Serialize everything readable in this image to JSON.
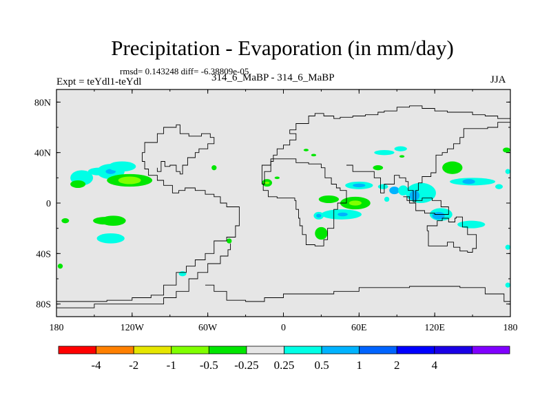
{
  "header": {
    "title": "Precipitation - Evaporation (in mm/day)",
    "stats": "rmsd= 0.143248 diff= -6.38809e-05",
    "left_label": "Expt = teYdl1-teYdl",
    "center_label": "314_6_MaBP - 314_6_MaBP",
    "right_label": "JJA"
  },
  "chart_data": {
    "type": "heatmap",
    "title": "Precipitation - Evaporation (in mm/day)",
    "subtitle": "rmsd= 0.143248 diff= -6.38809e-05",
    "left_string": "Expt = teYdl1-teYdl",
    "center_string": "314_6_MaBP - 314_6_MaBP",
    "right_string": "JJA",
    "x_range": [
      -180,
      180
    ],
    "y_range": [
      -90,
      90
    ],
    "x_ticks": [
      {
        "value": -180,
        "label": "180"
      },
      {
        "value": -120,
        "label": "120W"
      },
      {
        "value": -60,
        "label": "60W"
      },
      {
        "value": 0,
        "label": "0"
      },
      {
        "value": 60,
        "label": "60E"
      },
      {
        "value": 120,
        "label": "120E"
      },
      {
        "value": 180,
        "label": "180"
      }
    ],
    "y_ticks": [
      {
        "value": 80,
        "label": "80N"
      },
      {
        "value": 40,
        "label": "40N"
      },
      {
        "value": 0,
        "label": "0"
      },
      {
        "value": -40,
        "label": "40S"
      },
      {
        "value": -80,
        "label": "80S"
      }
    ],
    "background_color": "#e6e6e6",
    "colorbar": {
      "colors": [
        "#ff0000",
        "#ff8000",
        "#e6e600",
        "#80ff00",
        "#00e600",
        "#e6e6e6",
        "#00ffe6",
        "#00b3ff",
        "#0064ff",
        "#0000ff",
        "#1a00e6",
        "#8000ff"
      ],
      "labels": [
        "-4",
        "-2",
        "-1",
        "-0.5",
        "-0.25",
        "0.25",
        "0.5",
        "1",
        "2",
        "4"
      ]
    },
    "anomalies": [
      {
        "lon": -160,
        "lat": 20,
        "rx": 9,
        "ry": 6,
        "fill": "#00ffe6"
      },
      {
        "lon": -163,
        "lat": 15,
        "rx": 6,
        "ry": 3,
        "fill": "#00e600"
      },
      {
        "lon": -147,
        "lat": 25,
        "rx": 8,
        "ry": 3,
        "fill": "#00ffe6"
      },
      {
        "lon": -137,
        "lat": 25,
        "rx": 11,
        "ry": 6,
        "fill": "#00ffe6"
      },
      {
        "lon": -137,
        "lat": 25,
        "rx": 4,
        "ry": 2,
        "fill": "#00b3ff"
      },
      {
        "lon": -122,
        "lat": 18,
        "rx": 18,
        "ry": 5,
        "fill": "#00e600"
      },
      {
        "lon": -122,
        "lat": 18,
        "rx": 9,
        "ry": 3,
        "fill": "#80ff00"
      },
      {
        "lon": -128,
        "lat": 29,
        "rx": 11,
        "ry": 4,
        "fill": "#00ffe6"
      },
      {
        "lon": -142,
        "lat": -14,
        "rx": 9,
        "ry": 3,
        "fill": "#00e600"
      },
      {
        "lon": -135,
        "lat": -14,
        "rx": 10,
        "ry": 4,
        "fill": "#00e600"
      },
      {
        "lon": -137,
        "lat": -28,
        "rx": 11,
        "ry": 4,
        "fill": "#00ffe6"
      },
      {
        "lon": -173,
        "lat": -14,
        "rx": 3,
        "ry": 2,
        "fill": "#00e600"
      },
      {
        "lon": -177,
        "lat": -50,
        "rx": 2,
        "ry": 2,
        "fill": "#00e600"
      },
      {
        "lon": -80,
        "lat": -56,
        "rx": 3,
        "ry": 2,
        "fill": "#00ffe6"
      },
      {
        "lon": -43,
        "lat": -30,
        "rx": 2,
        "ry": 2,
        "fill": "#00e600"
      },
      {
        "lon": -55,
        "lat": 28,
        "rx": 2,
        "ry": 2,
        "fill": "#00e600"
      },
      {
        "lon": -13,
        "lat": 16,
        "rx": 4,
        "ry": 3,
        "fill": "#00e600"
      },
      {
        "lon": -13,
        "lat": 16,
        "rx": 2,
        "ry": 1,
        "fill": "#80ff00"
      },
      {
        "lon": -5,
        "lat": 20,
        "rx": 2,
        "ry": 1,
        "fill": "#00e600"
      },
      {
        "lon": 18,
        "lat": 42,
        "rx": 2,
        "ry": 1,
        "fill": "#00e600"
      },
      {
        "lon": 24,
        "lat": 38,
        "rx": 2,
        "ry": 1,
        "fill": "#00e600"
      },
      {
        "lon": 36,
        "lat": 3,
        "rx": 8,
        "ry": 3,
        "fill": "#00e600"
      },
      {
        "lon": 57,
        "lat": 0,
        "rx": 12,
        "ry": 5,
        "fill": "#00e600"
      },
      {
        "lon": 57,
        "lat": 0,
        "rx": 5,
        "ry": 2,
        "fill": "#80ff00"
      },
      {
        "lon": 46,
        "lat": -9,
        "rx": 16,
        "ry": 4,
        "fill": "#00ffe6"
      },
      {
        "lon": 47,
        "lat": -9,
        "rx": 4,
        "ry": 1.5,
        "fill": "#00b3ff"
      },
      {
        "lon": 28,
        "lat": -10,
        "rx": 4,
        "ry": 3,
        "fill": "#00ffe6"
      },
      {
        "lon": 28,
        "lat": -10,
        "rx": 2,
        "ry": 1.5,
        "fill": "#00b3ff"
      },
      {
        "lon": 30,
        "lat": -24,
        "rx": 5,
        "ry": 5,
        "fill": "#00e600"
      },
      {
        "lon": 60,
        "lat": 14,
        "rx": 11,
        "ry": 3,
        "fill": "#00ffe6"
      },
      {
        "lon": 60,
        "lat": 14,
        "rx": 5,
        "ry": 1.5,
        "fill": "#00b3ff"
      },
      {
        "lon": 79,
        "lat": 13,
        "rx": 4,
        "ry": 2,
        "fill": "#00ffe6"
      },
      {
        "lon": 82,
        "lat": 3,
        "rx": 2,
        "ry": 2,
        "fill": "#00ffe6"
      },
      {
        "lon": 88,
        "lat": 10,
        "rx": 4,
        "ry": 3,
        "fill": "#00b3ff"
      },
      {
        "lon": 109,
        "lat": 8,
        "rx": 12,
        "ry": 8,
        "fill": "#00ffe6"
      },
      {
        "lon": 104,
        "lat": 6,
        "rx": 4,
        "ry": 4,
        "fill": "#00b3ff"
      },
      {
        "lon": 95,
        "lat": 10,
        "rx": 4,
        "ry": 4,
        "fill": "#00ffe6"
      },
      {
        "lon": 80,
        "lat": 40,
        "rx": 8,
        "ry": 2,
        "fill": "#00ffe6"
      },
      {
        "lon": 93,
        "lat": 43,
        "rx": 5,
        "ry": 2,
        "fill": "#00ffe6"
      },
      {
        "lon": 75,
        "lat": 28,
        "rx": 4,
        "ry": 2,
        "fill": "#00e600"
      },
      {
        "lon": 94,
        "lat": 37,
        "rx": 2,
        "ry": 1,
        "fill": "#00e600"
      },
      {
        "lon": 125,
        "lat": -9,
        "rx": 9,
        "ry": 5,
        "fill": "#00ffe6"
      },
      {
        "lon": 123,
        "lat": -10,
        "rx": 5,
        "ry": 3,
        "fill": "#00b3ff"
      },
      {
        "lon": 134,
        "lat": 28,
        "rx": 8,
        "ry": 5,
        "fill": "#00e600"
      },
      {
        "lon": 150,
        "lat": 17,
        "rx": 18,
        "ry": 3,
        "fill": "#00ffe6"
      },
      {
        "lon": 147,
        "lat": 17,
        "rx": 5,
        "ry": 2,
        "fill": "#00b3ff"
      },
      {
        "lon": 171,
        "lat": 13,
        "rx": 3,
        "ry": 2,
        "fill": "#00ffe6"
      },
      {
        "lon": 149,
        "lat": -17,
        "rx": 11,
        "ry": 3,
        "fill": "#00ffe6"
      },
      {
        "lon": 177,
        "lat": 42,
        "rx": 3,
        "ry": 2,
        "fill": "#00e600"
      },
      {
        "lon": 178,
        "lat": 25,
        "rx": 2,
        "ry": 2,
        "fill": "#00ffe6"
      },
      {
        "lon": 178,
        "lat": -35,
        "rx": 2,
        "ry": 2,
        "fill": "#00ffe6"
      },
      {
        "lon": 178,
        "lat": -65,
        "rx": 2,
        "ry": 2,
        "fill": "#00ffe6"
      }
    ],
    "coastlines": [
      {
        "name": "americas-outline",
        "points": [
          [
            -180,
            -78
          ],
          [
            -140,
            -77
          ],
          [
            -120,
            -75
          ],
          [
            -105,
            -73
          ],
          [
            -95,
            -65
          ],
          [
            -85,
            -55
          ],
          [
            -77,
            -50
          ],
          [
            -70,
            -45
          ],
          [
            -62,
            -40
          ],
          [
            -55,
            -30
          ],
          [
            -45,
            -27
          ],
          [
            -38,
            -18
          ],
          [
            -35,
            -8
          ],
          [
            -35,
            -3
          ],
          [
            -45,
            0
          ],
          [
            -50,
            5
          ],
          [
            -55,
            7
          ],
          [
            -62,
            10
          ],
          [
            -70,
            12
          ],
          [
            -78,
            10
          ],
          [
            -83,
            8
          ],
          [
            -88,
            14
          ],
          [
            -95,
            18
          ],
          [
            -100,
            22
          ],
          [
            -107,
            27
          ],
          [
            -110,
            33
          ],
          [
            -112,
            40
          ],
          [
            -110,
            48
          ],
          [
            -100,
            55
          ],
          [
            -95,
            60
          ],
          [
            -85,
            62
          ],
          [
            -82,
            55
          ],
          [
            -75,
            53
          ],
          [
            -65,
            55
          ],
          [
            -58,
            52
          ],
          [
            -55,
            47
          ],
          [
            -60,
            43
          ],
          [
            -67,
            40
          ],
          [
            -70,
            36
          ],
          [
            -76,
            30
          ],
          [
            -80,
            23
          ],
          [
            -82,
            25
          ],
          [
            -85,
            30
          ],
          [
            -90,
            29
          ],
          [
            -94,
            33
          ],
          [
            -97,
            27
          ],
          [
            -97,
            25
          ],
          [
            -100,
            28
          ]
        ]
      },
      {
        "name": "south-america-inner",
        "points": [
          [
            -180,
            -83
          ],
          [
            -150,
            -80
          ],
          [
            -120,
            -80
          ],
          [
            -95,
            -75
          ],
          [
            -85,
            -70
          ],
          [
            -75,
            -60
          ],
          [
            -68,
            -55
          ],
          [
            -60,
            -48
          ],
          [
            -50,
            -42
          ],
          [
            -44,
            -37
          ],
          [
            -42,
            -32
          ]
        ]
      },
      {
        "name": "antarctica-outline",
        "points": [
          [
            -62,
            -65
          ],
          [
            -55,
            -70
          ],
          [
            -45,
            -77
          ],
          [
            -30,
            -78
          ],
          [
            -15,
            -75
          ],
          [
            0,
            -72
          ],
          [
            20,
            -72
          ],
          [
            40,
            -70
          ],
          [
            60,
            -67
          ],
          [
            80,
            -67
          ],
          [
            100,
            -66
          ],
          [
            120,
            -66
          ],
          [
            140,
            -67
          ],
          [
            160,
            -72
          ],
          [
            175,
            -78
          ],
          [
            180,
            -80
          ]
        ]
      },
      {
        "name": "eurasia-africa-outline",
        "points": [
          [
            -17,
            15
          ],
          [
            -15,
            25
          ],
          [
            -10,
            33
          ],
          [
            -8,
            38
          ],
          [
            -5,
            43
          ],
          [
            0,
            46
          ],
          [
            5,
            50
          ],
          [
            10,
            55
          ],
          [
            5,
            58
          ],
          [
            10,
            63
          ],
          [
            20,
            69
          ],
          [
            25,
            71
          ],
          [
            32,
            69
          ],
          [
            40,
            67
          ],
          [
            45,
            68
          ],
          [
            55,
            69
          ],
          [
            65,
            70
          ],
          [
            75,
            72
          ],
          [
            80,
            73
          ],
          [
            90,
            76
          ],
          [
            100,
            77
          ],
          [
            110,
            75
          ],
          [
            120,
            73
          ],
          [
            130,
            72
          ],
          [
            140,
            72
          ],
          [
            150,
            70
          ],
          [
            160,
            69
          ],
          [
            170,
            67
          ],
          [
            180,
            66
          ]
        ]
      },
      {
        "name": "africa-outline",
        "points": [
          [
            -17,
            15
          ],
          [
            -16,
            10
          ],
          [
            -12,
            5
          ],
          [
            -5,
            4
          ],
          [
            5,
            4
          ],
          [
            9,
            2
          ],
          [
            10,
            -5
          ],
          [
            12,
            -12
          ],
          [
            13,
            -18
          ],
          [
            15,
            -25
          ],
          [
            18,
            -33
          ],
          [
            25,
            -34
          ],
          [
            32,
            -29
          ],
          [
            35,
            -20
          ],
          [
            40,
            -15
          ],
          [
            40,
            -5
          ],
          [
            43,
            0
          ],
          [
            50,
            10
          ],
          [
            45,
            12
          ],
          [
            42,
            15
          ],
          [
            38,
            20
          ],
          [
            33,
            28
          ],
          [
            30,
            31
          ],
          [
            20,
            32
          ],
          [
            10,
            35
          ],
          [
            -5,
            35
          ],
          [
            -10,
            30
          ],
          [
            -17,
            21
          ],
          [
            -17,
            15
          ]
        ]
      },
      {
        "name": "asia-south-outline",
        "points": [
          [
            50,
            30
          ],
          [
            55,
            25
          ],
          [
            60,
            25
          ],
          [
            66,
            25
          ],
          [
            72,
            20
          ],
          [
            77,
            8
          ],
          [
            80,
            15
          ],
          [
            88,
            22
          ],
          [
            92,
            20
          ],
          [
            97,
            17
          ],
          [
            99,
            10
          ],
          [
            103,
            1
          ],
          [
            105,
            10
          ],
          [
            107,
            16
          ],
          [
            110,
            21
          ],
          [
            117,
            24
          ],
          [
            121,
            31
          ],
          [
            121,
            38
          ],
          [
            126,
            40
          ],
          [
            130,
            43
          ],
          [
            135,
            47
          ],
          [
            140,
            52
          ],
          [
            143,
            59
          ],
          [
            155,
            59
          ],
          [
            162,
            60
          ],
          [
            170,
            64
          ],
          [
            180,
            66
          ]
        ]
      },
      {
        "name": "australia-outline",
        "points": [
          [
            114,
            -22
          ],
          [
            115,
            -34
          ],
          [
            122,
            -34
          ],
          [
            130,
            -31
          ],
          [
            135,
            -35
          ],
          [
            140,
            -38
          ],
          [
            146,
            -39
          ],
          [
            150,
            -36
          ],
          [
            153,
            -29
          ],
          [
            153,
            -25
          ],
          [
            146,
            -19
          ],
          [
            142,
            -11
          ],
          [
            137,
            -12
          ],
          [
            136,
            -15
          ],
          [
            131,
            -12
          ],
          [
            126,
            -14
          ],
          [
            122,
            -18
          ],
          [
            114,
            -22
          ]
        ]
      },
      {
        "name": "indonesia-outline",
        "points": [
          [
            95,
            5
          ],
          [
            100,
            0
          ],
          [
            105,
            -6
          ],
          [
            112,
            -8
          ],
          [
            120,
            -9
          ],
          [
            127,
            -9
          ],
          [
            131,
            -3
          ],
          [
            125,
            2
          ],
          [
            118,
            4
          ],
          [
            110,
            2
          ],
          [
            104,
            2
          ],
          [
            98,
            5
          ],
          [
            95,
            5
          ]
        ]
      }
    ]
  }
}
